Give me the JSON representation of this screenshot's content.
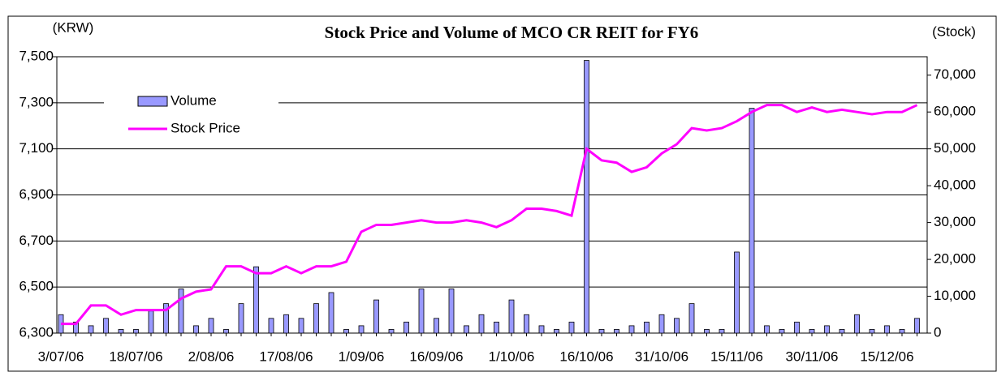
{
  "chart_data": {
    "type": "bar-line",
    "title": "Stock Price and Volume of MCO CR REIT for FY6",
    "y_axis_label": "(KRW)",
    "y2_axis_label": "(Stock)",
    "categories": [
      "3/07/06",
      null,
      null,
      null,
      null,
      "18/07/06",
      null,
      null,
      null,
      null,
      "2/08/06",
      null,
      null,
      null,
      null,
      "17/08/06",
      null,
      null,
      null,
      null,
      "1/09/06",
      null,
      null,
      null,
      null,
      "16/09/06",
      null,
      null,
      null,
      null,
      "1/10/06",
      null,
      null,
      null,
      null,
      "16/10/06",
      null,
      null,
      null,
      null,
      "31/10/06",
      null,
      null,
      null,
      null,
      "15/11/06",
      null,
      null,
      null,
      null,
      "30/11/06",
      null,
      null,
      null,
      null,
      "15/12/06",
      null,
      null
    ],
    "series": [
      {
        "name": "Volume",
        "kind": "bar",
        "axis": "y2",
        "color": "#9999ff",
        "values": [
          5000,
          3000,
          2000,
          4000,
          1000,
          1000,
          6000,
          8000,
          12000,
          2000,
          4000,
          1000,
          8000,
          18000,
          4000,
          5000,
          4000,
          8000,
          11000,
          1000,
          2000,
          9000,
          1000,
          3000,
          12000,
          4000,
          12000,
          2000,
          5000,
          3000,
          9000,
          5000,
          2000,
          1000,
          3000,
          74000,
          1000,
          1000,
          2000,
          3000,
          5000,
          4000,
          8000,
          1000,
          1000,
          22000,
          61000,
          2000,
          1000,
          3000,
          1000,
          2000,
          1000,
          5000,
          1000,
          2000,
          1000,
          4000
        ]
      },
      {
        "name": "Stock Price",
        "kind": "line",
        "axis": "y",
        "color": "#ff00ff",
        "values": [
          6340,
          6340,
          6420,
          6420,
          6380,
          6400,
          6400,
          6400,
          6450,
          6480,
          6490,
          6590,
          6590,
          6560,
          6560,
          6590,
          6560,
          6590,
          6590,
          6610,
          6740,
          6770,
          6770,
          6780,
          6790,
          6780,
          6780,
          6790,
          6780,
          6760,
          6790,
          6840,
          6840,
          6830,
          6810,
          7100,
          7050,
          7040,
          7000,
          7020,
          7080,
          7120,
          7190,
          7180,
          7190,
          7220,
          7260,
          7290,
          7290,
          7260,
          7280,
          7260,
          7270,
          7260,
          7250,
          7260,
          7260,
          7290
        ]
      }
    ],
    "ylim": [
      6300,
      7500
    ],
    "yticks": [
      {
        "value": 6300,
        "label": "6,300"
      },
      {
        "value": 6500,
        "label": "6,500"
      },
      {
        "value": 6700,
        "label": "6,700"
      },
      {
        "value": 6900,
        "label": "6,900"
      },
      {
        "value": 7100,
        "label": "7,100"
      },
      {
        "value": 7300,
        "label": "7,300"
      },
      {
        "value": 7500,
        "label": "7,500"
      }
    ],
    "y2lim": [
      0,
      75000
    ],
    "y2ticks": [
      0,
      {
        "value": 10000,
        "label": "10,000"
      },
      {
        "value": 20000,
        "label": "20,000"
      },
      {
        "value": 30000,
        "label": "30,000"
      },
      {
        "value": 40000,
        "label": "40,000"
      },
      {
        "value": 50000,
        "label": "50,000"
      },
      {
        "value": 60000,
        "label": "60,000"
      },
      {
        "value": 70000,
        "label": "70,000"
      }
    ],
    "grid": true,
    "legend": "upper left"
  }
}
